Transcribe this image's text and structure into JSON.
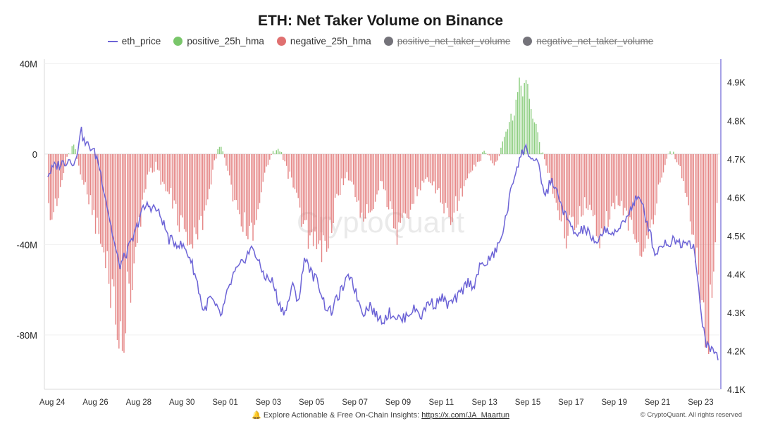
{
  "chart_data": {
    "type": "bar+line",
    "title": "ETH: Net Taker Volume on Binance",
    "legend": [
      {
        "name": "eth_price",
        "kind": "line",
        "color": "#6c63d6",
        "visible": true
      },
      {
        "name": "positive_25h_hma",
        "kind": "dot",
        "color": "#79c66a",
        "visible": true
      },
      {
        "name": "negative_25h_hma",
        "kind": "dot",
        "color": "#e07070",
        "visible": true
      },
      {
        "name": "positive_net_taker_volume",
        "kind": "dot",
        "color": "#74737a",
        "visible": false
      },
      {
        "name": "negative_net_taker_volume",
        "kind": "dot",
        "color": "#74737a",
        "visible": false
      }
    ],
    "x_ticks": [
      "Aug 24",
      "Aug 26",
      "Aug 28",
      "Aug 30",
      "Sep 01",
      "Sep 03",
      "Sep 05",
      "Sep 07",
      "Sep 09",
      "Sep 11",
      "Sep 13",
      "Sep 15",
      "Sep 17",
      "Sep 19",
      "Sep 21",
      "Sep 23"
    ],
    "x_range_days": [
      0,
      31
    ],
    "y_left": {
      "ticks": [
        "40M",
        "0",
        "-40M",
        "-80M"
      ],
      "tick_values": [
        40,
        0,
        -40,
        -80
      ],
      "range": [
        -104,
        42
      ],
      "unit": "M"
    },
    "y_right": {
      "ticks": [
        "4.9K",
        "4.8K",
        "4.7K",
        "4.6K",
        "4.5K",
        "4.4K",
        "4.3K",
        "4.2K",
        "4.1K"
      ],
      "tick_values": [
        4900,
        4800,
        4700,
        4600,
        4500,
        4400,
        4300,
        4200,
        4100
      ],
      "range": [
        4100,
        4960
      ]
    },
    "volume_keypoints_millions": [
      [
        0,
        -22
      ],
      [
        0.2,
        -28
      ],
      [
        0.5,
        -18
      ],
      [
        0.9,
        -2
      ],
      [
        1.2,
        4
      ],
      [
        1.5,
        -8
      ],
      [
        1.8,
        -15
      ],
      [
        2.2,
        -30
      ],
      [
        2.6,
        -45
      ],
      [
        2.9,
        -58
      ],
      [
        3.2,
        -70
      ],
      [
        3.4,
        -92
      ],
      [
        3.7,
        -62
      ],
      [
        4.0,
        -48
      ],
      [
        4.3,
        -28
      ],
      [
        4.6,
        -10
      ],
      [
        5.0,
        -5
      ],
      [
        5.4,
        -15
      ],
      [
        5.8,
        -22
      ],
      [
        6.2,
        -32
      ],
      [
        6.7,
        -40
      ],
      [
        7.0,
        -35
      ],
      [
        7.3,
        -22
      ],
      [
        7.6,
        -10
      ],
      [
        7.9,
        5
      ],
      [
        8.2,
        -3
      ],
      [
        8.6,
        -18
      ],
      [
        9.0,
        -28
      ],
      [
        9.4,
        -36
      ],
      [
        9.7,
        -25
      ],
      [
        10.0,
        -10
      ],
      [
        10.3,
        0
      ],
      [
        10.7,
        3
      ],
      [
        11.0,
        -5
      ],
      [
        11.4,
        -15
      ],
      [
        11.8,
        -30
      ],
      [
        12.2,
        -40
      ],
      [
        12.6,
        -44
      ],
      [
        13.0,
        -35
      ],
      [
        13.4,
        -20
      ],
      [
        13.8,
        -8
      ],
      [
        14.2,
        -18
      ],
      [
        14.6,
        -28
      ],
      [
        15.0,
        -22
      ],
      [
        15.4,
        -12
      ],
      [
        15.8,
        -22
      ],
      [
        16.2,
        -36
      ],
      [
        16.6,
        -30
      ],
      [
        17.0,
        -18
      ],
      [
        17.4,
        -10
      ],
      [
        17.8,
        -14
      ],
      [
        18.2,
        -20
      ],
      [
        18.6,
        -28
      ],
      [
        19.0,
        -20
      ],
      [
        19.5,
        -10
      ],
      [
        19.9,
        -3
      ],
      [
        20.3,
        2
      ],
      [
        20.7,
        -6
      ],
      [
        21.2,
        10
      ],
      [
        21.6,
        20
      ],
      [
        21.9,
        32
      ],
      [
        22.2,
        28
      ],
      [
        22.5,
        14
      ],
      [
        22.8,
        3
      ],
      [
        23.2,
        -10
      ],
      [
        23.6,
        -25
      ],
      [
        24.0,
        -35
      ],
      [
        24.4,
        -30
      ],
      [
        24.8,
        -22
      ],
      [
        25.2,
        -28
      ],
      [
        25.6,
        -35
      ],
      [
        26.0,
        -28
      ],
      [
        26.4,
        -20
      ],
      [
        26.8,
        -28
      ],
      [
        27.2,
        -36
      ],
      [
        27.6,
        -45
      ],
      [
        28.0,
        -30
      ],
      [
        28.4,
        -10
      ],
      [
        28.8,
        2
      ],
      [
        29.2,
        -4
      ],
      [
        29.6,
        -20
      ],
      [
        30.0,
        -45
      ],
      [
        30.2,
        -70
      ],
      [
        30.5,
        -82
      ],
      [
        30.8,
        -50
      ],
      [
        31.0,
        -15
      ]
    ],
    "price_keypoints": [
      [
        0,
        4660
      ],
      [
        0.3,
        4680
      ],
      [
        0.7,
        4690
      ],
      [
        1.0,
        4700
      ],
      [
        1.3,
        4690
      ],
      [
        1.5,
        4780
      ],
      [
        1.7,
        4740
      ],
      [
        2.0,
        4730
      ],
      [
        2.3,
        4700
      ],
      [
        2.6,
        4620
      ],
      [
        3.0,
        4500
      ],
      [
        3.3,
        4420
      ],
      [
        3.6,
        4450
      ],
      [
        4.0,
        4500
      ],
      [
        4.3,
        4560
      ],
      [
        4.6,
        4580
      ],
      [
        5.0,
        4570
      ],
      [
        5.3,
        4540
      ],
      [
        5.6,
        4490
      ],
      [
        6.0,
        4480
      ],
      [
        6.3,
        4470
      ],
      [
        6.6,
        4440
      ],
      [
        6.9,
        4380
      ],
      [
        7.2,
        4300
      ],
      [
        7.5,
        4340
      ],
      [
        7.8,
        4310
      ],
      [
        8.0,
        4290
      ],
      [
        8.3,
        4350
      ],
      [
        8.6,
        4400
      ],
      [
        8.9,
        4420
      ],
      [
        9.2,
        4450
      ],
      [
        9.5,
        4470
      ],
      [
        9.8,
        4420
      ],
      [
        10.1,
        4390
      ],
      [
        10.4,
        4380
      ],
      [
        10.7,
        4320
      ],
      [
        11.0,
        4300
      ],
      [
        11.3,
        4370
      ],
      [
        11.6,
        4330
      ],
      [
        11.9,
        4450
      ],
      [
        12.2,
        4400
      ],
      [
        12.5,
        4380
      ],
      [
        12.8,
        4320
      ],
      [
        13.1,
        4300
      ],
      [
        13.4,
        4340
      ],
      [
        13.7,
        4370
      ],
      [
        14.0,
        4400
      ],
      [
        14.3,
        4340
      ],
      [
        14.6,
        4300
      ],
      [
        14.9,
        4320
      ],
      [
        15.2,
        4290
      ],
      [
        15.5,
        4280
      ],
      [
        15.8,
        4300
      ],
      [
        16.1,
        4290
      ],
      [
        16.4,
        4280
      ],
      [
        16.7,
        4300
      ],
      [
        17.0,
        4310
      ],
      [
        17.3,
        4290
      ],
      [
        17.6,
        4330
      ],
      [
        17.9,
        4320
      ],
      [
        18.2,
        4340
      ],
      [
        18.5,
        4320
      ],
      [
        18.8,
        4330
      ],
      [
        19.1,
        4350
      ],
      [
        19.4,
        4380
      ],
      [
        19.7,
        4370
      ],
      [
        20.0,
        4420
      ],
      [
        20.3,
        4430
      ],
      [
        20.6,
        4450
      ],
      [
        20.9,
        4480
      ],
      [
        21.2,
        4550
      ],
      [
        21.5,
        4640
      ],
      [
        21.8,
        4700
      ],
      [
        22.1,
        4730
      ],
      [
        22.4,
        4700
      ],
      [
        22.7,
        4680
      ],
      [
        23.0,
        4600
      ],
      [
        23.3,
        4650
      ],
      [
        23.6,
        4600
      ],
      [
        23.9,
        4560
      ],
      [
        24.2,
        4520
      ],
      [
        24.5,
        4500
      ],
      [
        24.8,
        4520
      ],
      [
        25.1,
        4500
      ],
      [
        25.4,
        4470
      ],
      [
        25.7,
        4520
      ],
      [
        26.0,
        4510
      ],
      [
        26.3,
        4500
      ],
      [
        26.6,
        4540
      ],
      [
        26.9,
        4560
      ],
      [
        27.2,
        4600
      ],
      [
        27.5,
        4580
      ],
      [
        27.8,
        4520
      ],
      [
        28.1,
        4450
      ],
      [
        28.4,
        4480
      ],
      [
        28.7,
        4480
      ],
      [
        29.0,
        4490
      ],
      [
        29.3,
        4480
      ],
      [
        29.6,
        4490
      ],
      [
        29.9,
        4470
      ],
      [
        30.2,
        4300
      ],
      [
        30.5,
        4210
      ],
      [
        30.8,
        4200
      ],
      [
        31.0,
        4185
      ]
    ]
  },
  "footer": {
    "text": "Explore Actionable & Free On-Chain Insights:",
    "link": "https://x.com/JA_Maartun",
    "copyright": "© CryptoQuant. All rights reserved"
  },
  "watermark": "CryptoQuant"
}
